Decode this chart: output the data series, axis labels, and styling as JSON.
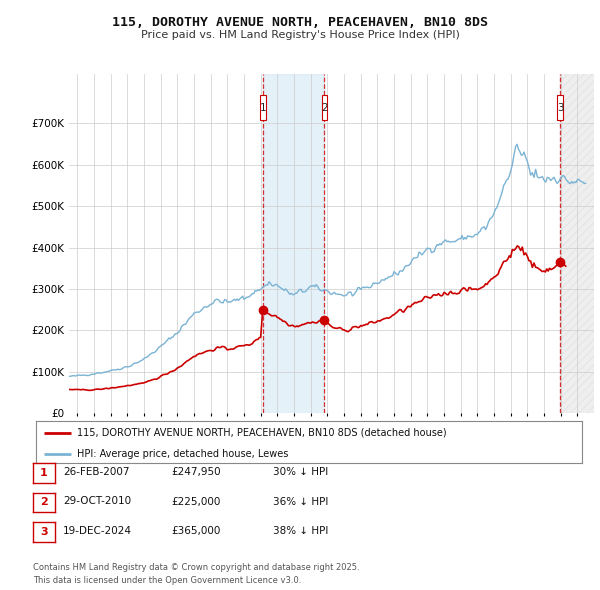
{
  "title": "115, DOROTHY AVENUE NORTH, PEACEHAVEN, BN10 8DS",
  "subtitle": "Price paid vs. HM Land Registry's House Price Index (HPI)",
  "hpi_color": "#7ab3d4",
  "price_color": "#cc0000",
  "background_color": "#ffffff",
  "grid_color": "#cccccc",
  "ylim": [
    0,
    820000
  ],
  "yticks": [
    0,
    100000,
    200000,
    300000,
    400000,
    500000,
    600000,
    700000
  ],
  "ytick_labels": [
    "£0",
    "£100K",
    "£200K",
    "£300K",
    "£400K",
    "£500K",
    "£600K",
    "£700K"
  ],
  "xmin": 1995.5,
  "xmax": 2027.0,
  "sale_dates_num": [
    2007.12,
    2010.83,
    2024.97
  ],
  "sale_prices": [
    247950,
    225000,
    365000
  ],
  "sale_labels": [
    "1",
    "2",
    "3"
  ],
  "legend_line1": "115, DOROTHY AVENUE NORTH, PEACEHAVEN, BN10 8DS (detached house)",
  "legend_line2": "HPI: Average price, detached house, Lewes",
  "table_rows": [
    {
      "num": "1",
      "date": "26-FEB-2007",
      "price": "£247,950",
      "pct": "30% ↓ HPI"
    },
    {
      "num": "2",
      "date": "29-OCT-2010",
      "price": "£225,000",
      "pct": "36% ↓ HPI"
    },
    {
      "num": "3",
      "date": "19-DEC-2024",
      "price": "£365,000",
      "pct": "38% ↓ HPI"
    }
  ],
  "footer": "Contains HM Land Registry data © Crown copyright and database right 2025.\nThis data is licensed under the Open Government Licence v3.0."
}
